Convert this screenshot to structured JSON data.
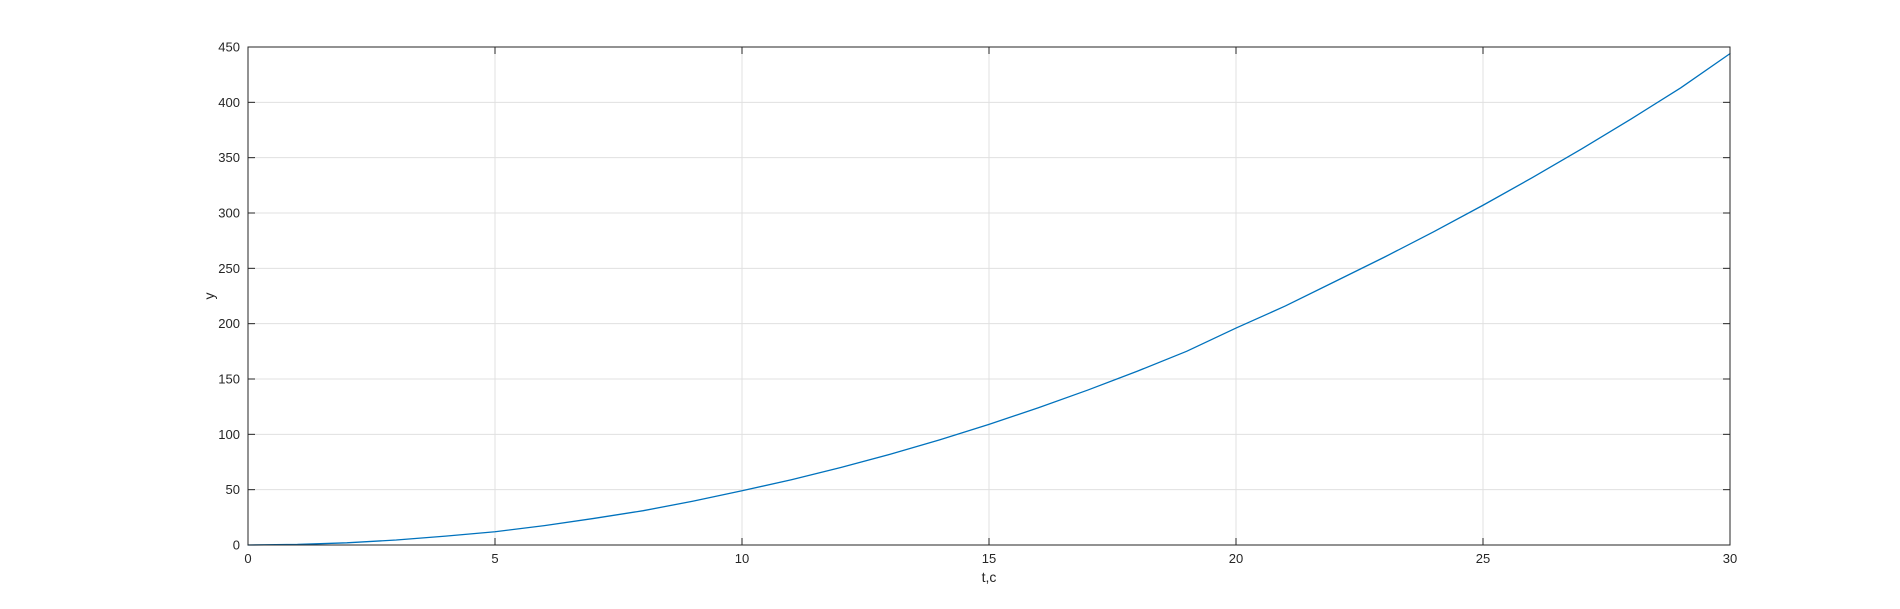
{
  "chart_data": {
    "type": "line",
    "title": "",
    "xlabel": "t,c",
    "ylabel": "y",
    "xlim": [
      0,
      30
    ],
    "ylim": [
      0,
      450
    ],
    "x_ticks": [
      0,
      5,
      10,
      15,
      20,
      25,
      30
    ],
    "y_ticks": [
      0,
      50,
      100,
      150,
      200,
      250,
      300,
      350,
      400,
      450
    ],
    "grid": true,
    "legend": "none",
    "series": [
      {
        "color": "#0072BD",
        "x": [
          0,
          1,
          2,
          3,
          4,
          5,
          6,
          7,
          8,
          9,
          10,
          11,
          12,
          13,
          14,
          15,
          16,
          17,
          18,
          19,
          20,
          21,
          22,
          23,
          24,
          25,
          26,
          27,
          28,
          29,
          30
        ],
        "y": [
          0,
          0.5,
          2,
          4.5,
          8,
          12,
          17.5,
          24,
          31,
          39.5,
          49,
          59,
          70,
          82,
          95,
          109,
          124,
          140,
          157,
          175,
          196,
          216,
          238,
          260,
          283,
          307,
          332,
          358,
          385,
          413,
          444
        ]
      }
    ]
  },
  "colors": {
    "axis": "#262626",
    "grid": "#e0e0e0",
    "line": "#0072BD"
  }
}
